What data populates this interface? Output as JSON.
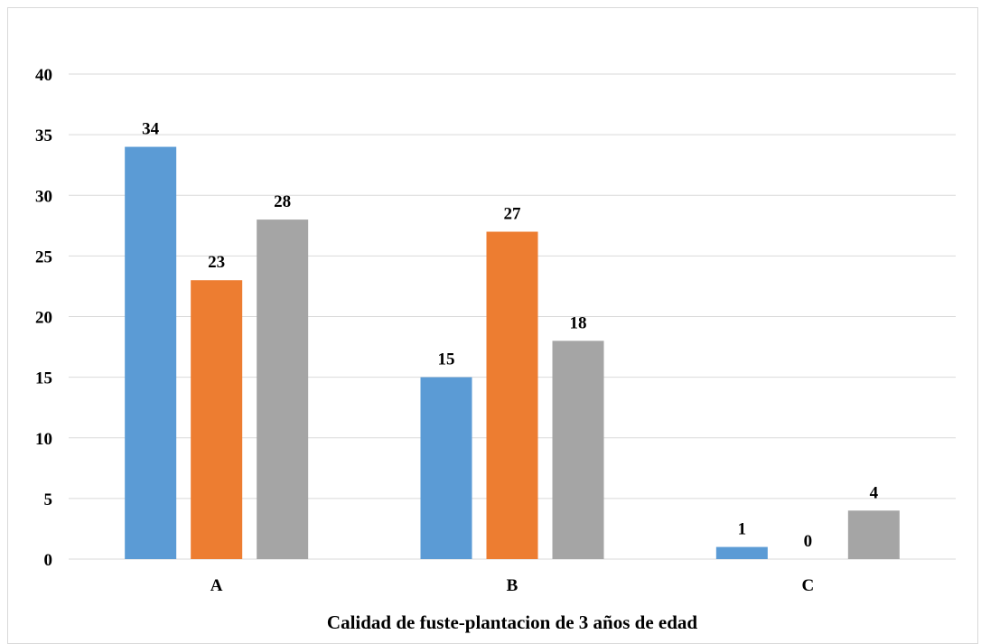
{
  "chart_data": {
    "type": "bar",
    "categories": [
      "A",
      "B",
      "C"
    ],
    "series": [
      {
        "values": [
          34,
          15,
          1
        ],
        "color": "#5b9bd5"
      },
      {
        "values": [
          23,
          27,
          0
        ],
        "color": "#ed7d31"
      },
      {
        "values": [
          28,
          18,
          4
        ],
        "color": "#a5a5a5"
      }
    ],
    "title": "",
    "xlabel": "Calidad de fuste-plantacion de 3 años de edad",
    "ylabel": "",
    "ylim": [
      0,
      40
    ],
    "yticks": [
      "0",
      "5",
      "10",
      "15",
      "20",
      "25",
      "30",
      "35",
      "40"
    ],
    "grid": true,
    "gridline_color": "#d9d9d9",
    "legend": "none",
    "data_labels": true
  }
}
